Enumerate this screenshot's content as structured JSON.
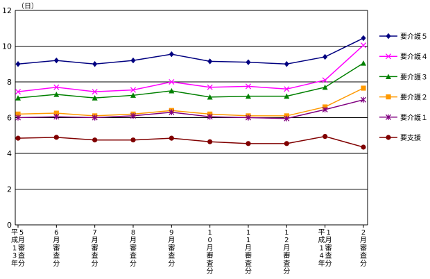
{
  "chart_data": {
    "type": "line",
    "unit_label": "（日）",
    "ylim": [
      0,
      12
    ],
    "yticks": [
      0,
      2,
      4,
      6,
      8,
      10,
      12
    ],
    "grid": true,
    "legend_position": "right",
    "categories": [
      "平成13年5月審査分",
      "6月審査分",
      "7月審査分",
      "8月審査分",
      "9月審査分",
      "10月審査分",
      "11月審査分",
      "12月審査分",
      "平成14年1月審査分",
      "2月審査分"
    ],
    "category_columns": [
      [
        "平成13年",
        "5月審査分"
      ],
      [
        "6月審査分"
      ],
      [
        "7月審査分"
      ],
      [
        "8月審査分"
      ],
      [
        "9月審査分"
      ],
      [
        "10月審査分"
      ],
      [
        "11月審査分"
      ],
      [
        "12月審査分"
      ],
      [
        "平成14年",
        "1月審査分"
      ],
      [
        "2月審査分"
      ]
    ],
    "series": [
      {
        "name": "要介護５",
        "color": "#000080",
        "marker": "diamond",
        "values": [
          9.0,
          9.2,
          9.0,
          9.2,
          9.55,
          9.15,
          9.1,
          9.0,
          9.4,
          10.45
        ]
      },
      {
        "name": "要介護４",
        "color": "#ff00ff",
        "marker": "x",
        "values": [
          7.45,
          7.7,
          7.45,
          7.55,
          8.0,
          7.7,
          7.75,
          7.6,
          8.1,
          10.05
        ]
      },
      {
        "name": "要介護３",
        "color": "#008000",
        "marker": "triangle",
        "values": [
          7.1,
          7.3,
          7.1,
          7.25,
          7.5,
          7.15,
          7.2,
          7.2,
          7.7,
          9.05
        ]
      },
      {
        "name": "要介護２",
        "color": "#ff9900",
        "marker": "square",
        "values": [
          6.2,
          6.25,
          6.1,
          6.2,
          6.4,
          6.2,
          6.1,
          6.1,
          6.6,
          7.65
        ]
      },
      {
        "name": "要介護１",
        "color": "#800080",
        "marker": "asterisk",
        "values": [
          6.0,
          6.05,
          6.0,
          6.1,
          6.3,
          6.05,
          6.0,
          5.95,
          6.45,
          7.0
        ]
      },
      {
        "name": "要支援",
        "color": "#800000",
        "marker": "circle",
        "values": [
          4.85,
          4.9,
          4.75,
          4.75,
          4.85,
          4.65,
          4.55,
          4.55,
          4.95,
          4.35
        ]
      }
    ]
  }
}
